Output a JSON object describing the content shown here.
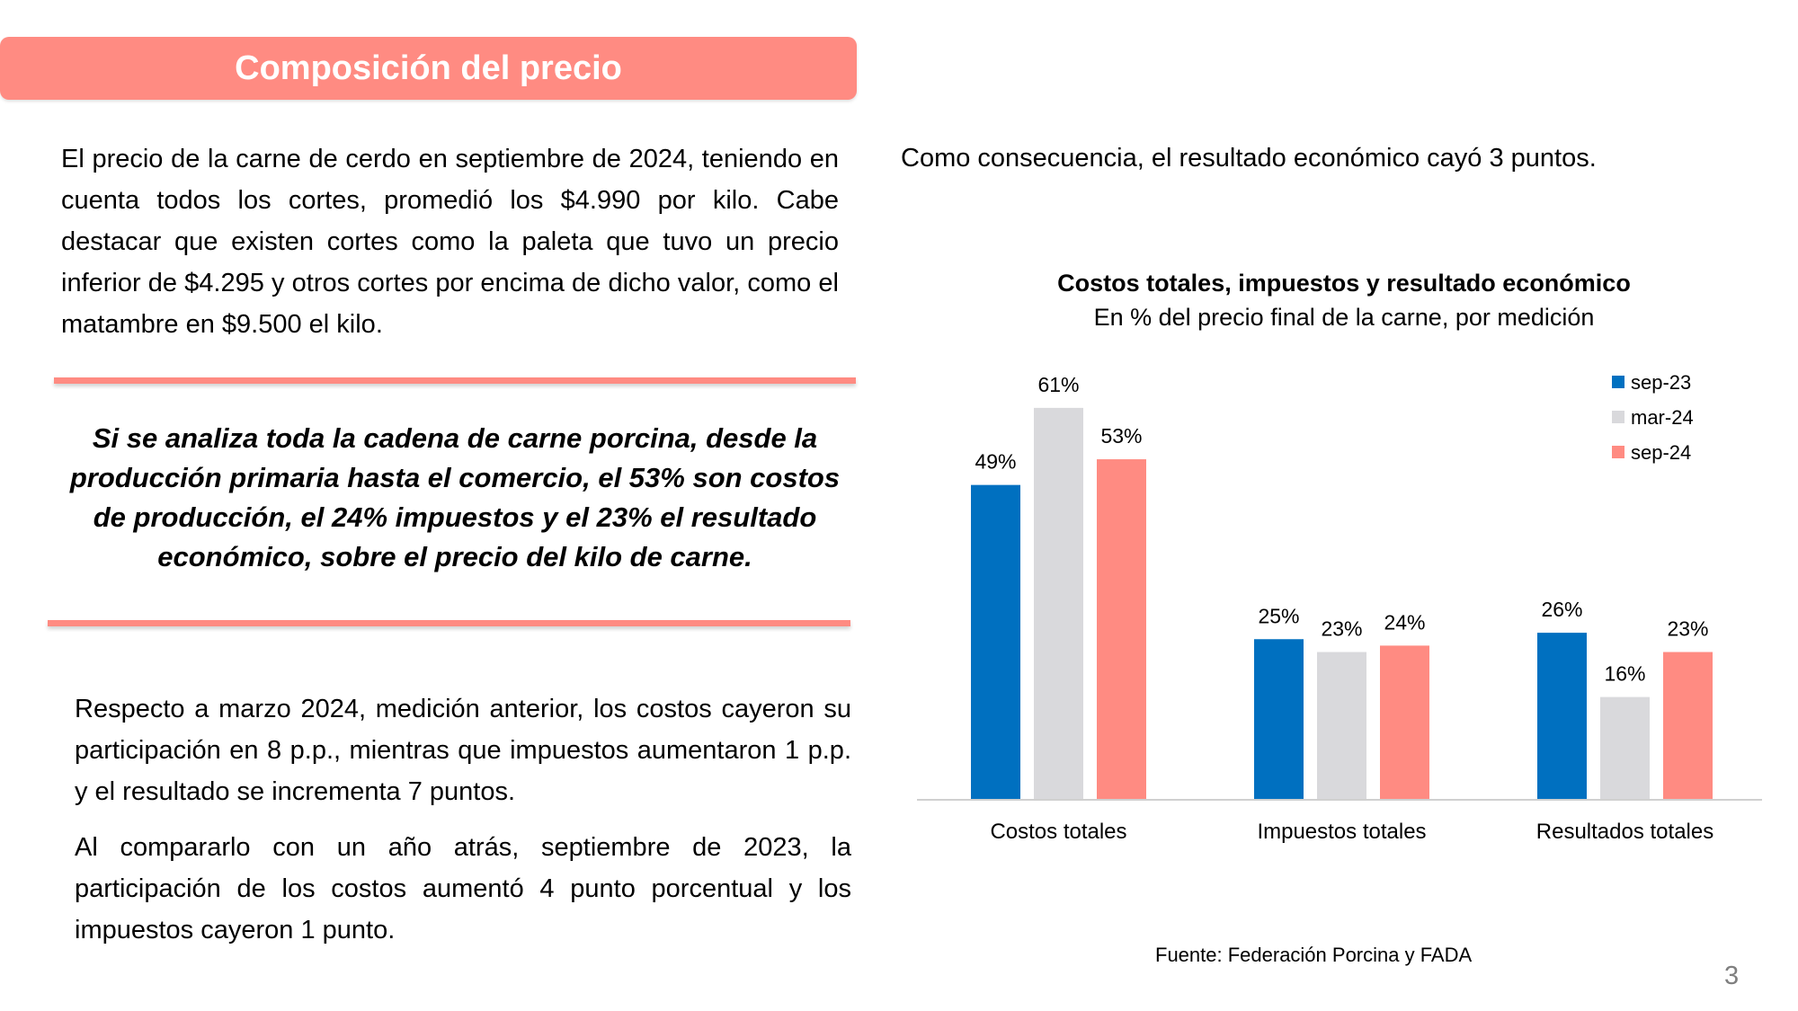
{
  "header": {
    "title": "Composición del precio"
  },
  "left": {
    "paragraph1": "El precio de la carne de cerdo en septiembre de 2024, teniendo en cuenta todos los cortes, promedió los $4.990 por kilo. Cabe destacar que existen cortes como la paleta que tuvo un precio inferior de $4.295 y otros cortes por encima de dicho valor, como el matambre en $9.500 el kilo.",
    "highlight": "Si se analiza toda la cadena de carne porcina, desde la producción primaria hasta el comercio, el 53% son costos de producción, el 24% impuestos y el 23% el resultado económico, sobre el precio del kilo de carne.",
    "paragraph2": "Respecto a marzo 2024, medición anterior, los costos cayeron su participación en 8 p.p., mientras que impuestos aumentaron 1 p.p. y el resultado se incrementa 7 puntos.",
    "paragraph3": "Al compararlo con un año atrás, septiembre de 2023, la participación de los costos aumentó 4  punto porcentual y los impuestos cayeron 1 punto."
  },
  "right": {
    "intro": "Como consecuencia, el resultado económico cayó 3 puntos."
  },
  "chart_data": {
    "type": "bar",
    "title": "Costos totales, impuestos y resultado económico",
    "subtitle": "En % del precio final de la carne, por medición",
    "categories": [
      "Costos totales",
      "Impuestos totales",
      "Resultados totales"
    ],
    "series": [
      {
        "name": "sep-23",
        "values": [
          49,
          25,
          26
        ],
        "labels": [
          "49%",
          "25%",
          "26%"
        ],
        "color": "#0070c0"
      },
      {
        "name": "mar-24",
        "values": [
          61,
          23,
          16
        ],
        "labels": [
          "61%",
          "23%",
          "16%"
        ],
        "color": "#d9d9dc"
      },
      {
        "name": "sep-24",
        "values": [
          53,
          24,
          23
        ],
        "labels": [
          "53%",
          "24%",
          "23%"
        ],
        "color": "#ff8b82"
      }
    ],
    "ylim": [
      0,
      70
    ],
    "grid": false,
    "legend": "top-right"
  },
  "source": "Fuente: Federación Porcina y FADA",
  "page_number": "3"
}
